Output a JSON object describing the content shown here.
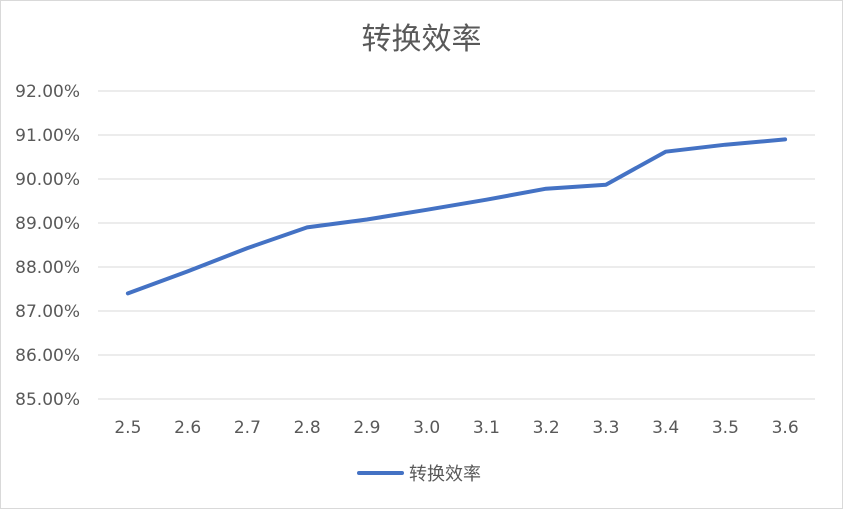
{
  "chart_data": {
    "type": "line",
    "title": "转换效率",
    "xlabel": "",
    "ylabel": "",
    "x": [
      "2.5",
      "2.6",
      "2.7",
      "2.8",
      "2.9",
      "3.0",
      "3.1",
      "3.2",
      "3.3",
      "3.4",
      "3.5",
      "3.6"
    ],
    "series": [
      {
        "name": "转换效率",
        "values": [
          0.874,
          0.879,
          0.8843,
          0.889,
          0.8908,
          0.893,
          0.8953,
          0.8978,
          0.8987,
          0.9062,
          0.9078,
          0.909
        ],
        "color": "#4472c4"
      }
    ],
    "ylim": [
      0.85,
      0.92
    ],
    "yticks": [
      0.85,
      0.86,
      0.87,
      0.88,
      0.89,
      0.9,
      0.91,
      0.92
    ],
    "ytick_labels": [
      "85.00%",
      "86.00%",
      "87.00%",
      "88.00%",
      "89.00%",
      "90.00%",
      "91.00%",
      "92.00%"
    ],
    "grid": true,
    "legend": "bottom"
  }
}
